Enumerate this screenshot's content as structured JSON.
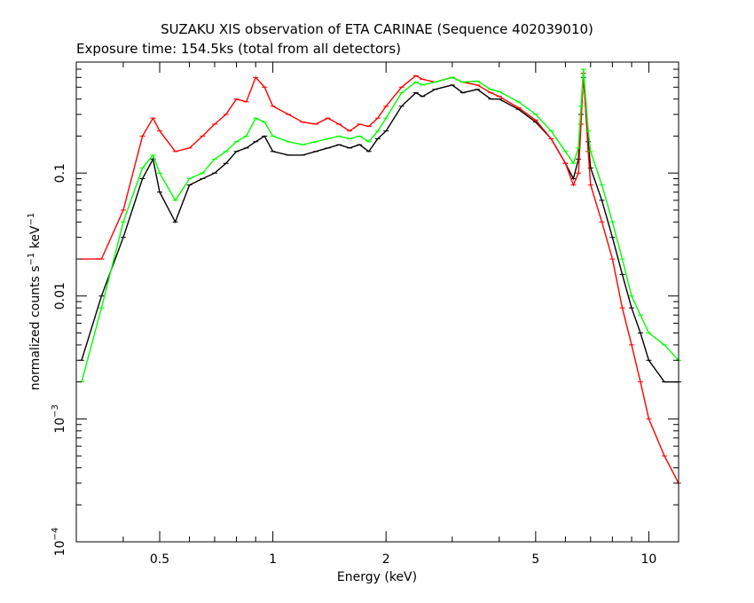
{
  "chart_data": {
    "type": "line",
    "title": "SUZAKU XIS observation of ETA CARINAE (Sequence 402039010)",
    "subtitle": "Exposure time: 154.5ks (total from all detectors)",
    "xlabel": "Energy (keV)",
    "ylabel": {
      "main": "normalized counts s",
      "exp1": "−1",
      "mid": " keV",
      "exp2": "−1"
    },
    "xscale": "log",
    "yscale": "log",
    "xlim": [
      0.3,
      12
    ],
    "ylim": [
      0.0001,
      0.8
    ],
    "x_ticks": [
      {
        "value": 0.5,
        "label": "0.5"
      },
      {
        "value": 1,
        "label": "1"
      },
      {
        "value": 2,
        "label": "2"
      },
      {
        "value": 5,
        "label": "5"
      },
      {
        "value": 10,
        "label": "10"
      }
    ],
    "y_ticks": [
      {
        "value": 0.0001,
        "base": "10",
        "exp": "−4"
      },
      {
        "value": 0.001,
        "base": "10",
        "exp": "−3"
      },
      {
        "value": 0.01,
        "base": "0.01",
        "exp": ""
      },
      {
        "value": 0.1,
        "base": "0.1",
        "exp": ""
      }
    ],
    "grid": false,
    "series": [
      {
        "color": "#000000",
        "x": [
          0.31,
          0.35,
          0.4,
          0.45,
          0.48,
          0.5,
          0.55,
          0.6,
          0.65,
          0.7,
          0.75,
          0.8,
          0.85,
          0.9,
          0.95,
          1.0,
          1.1,
          1.2,
          1.3,
          1.4,
          1.5,
          1.6,
          1.7,
          1.8,
          1.9,
          2.0,
          2.2,
          2.4,
          2.5,
          2.7,
          3.0,
          3.2,
          3.5,
          3.8,
          4.0,
          4.5,
          5.0,
          5.5,
          6.0,
          6.3,
          6.5,
          6.6,
          6.7,
          6.9,
          7.0,
          7.5,
          8.0,
          8.5,
          9.0,
          9.5,
          10.0,
          11.0,
          12.0
        ],
        "y": [
          0.003,
          0.01,
          0.03,
          0.09,
          0.13,
          0.07,
          0.04,
          0.08,
          0.09,
          0.1,
          0.12,
          0.15,
          0.16,
          0.18,
          0.2,
          0.15,
          0.14,
          0.14,
          0.15,
          0.16,
          0.17,
          0.16,
          0.17,
          0.15,
          0.19,
          0.22,
          0.35,
          0.45,
          0.42,
          0.48,
          0.52,
          0.45,
          0.48,
          0.4,
          0.4,
          0.33,
          0.26,
          0.19,
          0.12,
          0.09,
          0.13,
          0.3,
          0.6,
          0.18,
          0.11,
          0.06,
          0.03,
          0.015,
          0.008,
          0.005,
          0.003,
          0.002,
          0.002
        ]
      },
      {
        "color": "#ff0000",
        "x": [
          0.31,
          0.35,
          0.4,
          0.45,
          0.48,
          0.5,
          0.55,
          0.6,
          0.65,
          0.7,
          0.75,
          0.8,
          0.85,
          0.9,
          0.95,
          1.0,
          1.1,
          1.2,
          1.3,
          1.4,
          1.5,
          1.6,
          1.7,
          1.8,
          1.9,
          2.0,
          2.2,
          2.4,
          2.5,
          2.7,
          3.0,
          3.2,
          3.5,
          3.8,
          4.0,
          4.5,
          5.0,
          5.5,
          6.0,
          6.3,
          6.5,
          6.6,
          6.7,
          6.9,
          7.0,
          7.5,
          8.0,
          8.5,
          9.0,
          9.5,
          10.0,
          11.0,
          12.0
        ],
        "y": [
          0.02,
          0.02,
          0.05,
          0.2,
          0.28,
          0.22,
          0.15,
          0.16,
          0.2,
          0.25,
          0.3,
          0.4,
          0.38,
          0.6,
          0.5,
          0.35,
          0.3,
          0.26,
          0.25,
          0.28,
          0.25,
          0.22,
          0.25,
          0.24,
          0.28,
          0.35,
          0.5,
          0.62,
          0.58,
          0.55,
          0.6,
          0.55,
          0.52,
          0.45,
          0.42,
          0.34,
          0.27,
          0.19,
          0.12,
          0.08,
          0.1,
          0.25,
          0.65,
          0.15,
          0.08,
          0.04,
          0.02,
          0.008,
          0.004,
          0.002,
          0.001,
          0.0005,
          0.0003
        ]
      },
      {
        "color": "#00ff00",
        "x": [
          0.31,
          0.35,
          0.4,
          0.45,
          0.48,
          0.5,
          0.55,
          0.6,
          0.65,
          0.7,
          0.75,
          0.8,
          0.85,
          0.9,
          0.95,
          1.0,
          1.1,
          1.2,
          1.3,
          1.4,
          1.5,
          1.6,
          1.7,
          1.8,
          1.9,
          2.0,
          2.2,
          2.4,
          2.5,
          2.7,
          3.0,
          3.2,
          3.5,
          3.8,
          4.0,
          4.5,
          5.0,
          5.5,
          6.0,
          6.3,
          6.5,
          6.6,
          6.7,
          6.9,
          7.0,
          7.5,
          8.0,
          8.5,
          9.0,
          9.5,
          10.0,
          11.0,
          12.0
        ],
        "y": [
          0.002,
          0.008,
          0.04,
          0.11,
          0.14,
          0.1,
          0.06,
          0.09,
          0.1,
          0.13,
          0.15,
          0.18,
          0.2,
          0.28,
          0.26,
          0.2,
          0.18,
          0.17,
          0.18,
          0.19,
          0.2,
          0.19,
          0.2,
          0.18,
          0.22,
          0.28,
          0.45,
          0.55,
          0.52,
          0.55,
          0.6,
          0.55,
          0.56,
          0.48,
          0.46,
          0.38,
          0.3,
          0.22,
          0.15,
          0.12,
          0.16,
          0.35,
          0.7,
          0.22,
          0.15,
          0.08,
          0.04,
          0.02,
          0.01,
          0.007,
          0.005,
          0.004,
          0.003
        ]
      }
    ]
  }
}
